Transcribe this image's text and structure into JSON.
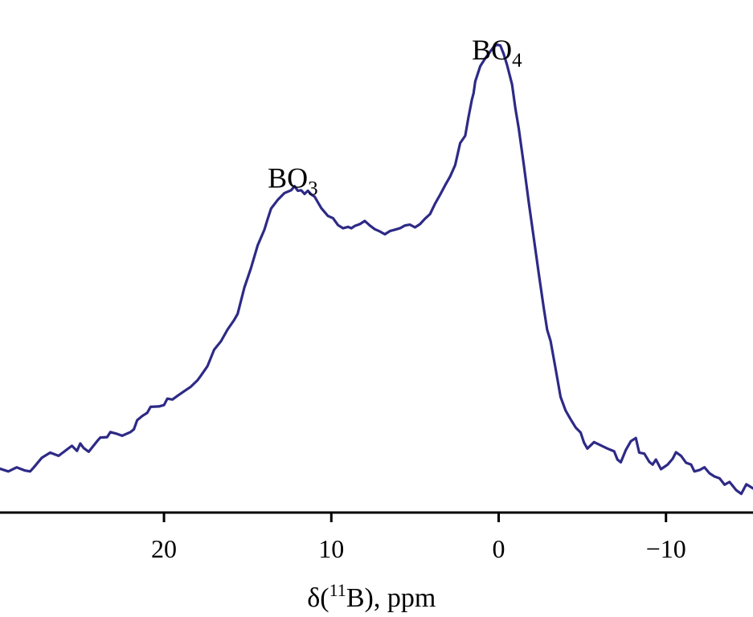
{
  "chart_data": {
    "type": "line",
    "title": "",
    "xlabel": {
      "prefix": "δ(",
      "superscript": "11",
      "suffix": "B), ppm"
    },
    "ylabel": "",
    "xlim": [
      29.8,
      -15.2
    ],
    "ylim": [
      0,
      1.0
    ],
    "x_reversed": true,
    "y_axis_visible": false,
    "grid": false,
    "legend": "none",
    "line_color": "#2e2a86",
    "axis_color": "#000000",
    "xticks": [
      {
        "value": 20,
        "label": "20"
      },
      {
        "value": 10,
        "label": "10"
      },
      {
        "value": 0,
        "label": "0"
      },
      {
        "value": -10,
        "label": "−10"
      }
    ],
    "annotations": [
      {
        "id": "bo3",
        "base": "BO",
        "subscript": "3",
        "x": 12.3,
        "y": 0.68
      },
      {
        "id": "bo4",
        "base": "BO",
        "subscript": "4",
        "x": 0.1,
        "y": 0.96
      }
    ],
    "series": [
      {
        "x": [
          29.8,
          29.3,
          28.8,
          28.3,
          28.0,
          27.8,
          27.3,
          26.8,
          26.3,
          25.8,
          25.5,
          25.2,
          25.0,
          24.8,
          24.5,
          24.0,
          23.8,
          23.4,
          23.2,
          22.8,
          22.5,
          22.0,
          21.8,
          21.6,
          21.3,
          21.0,
          20.8,
          20.3,
          20.0,
          19.8,
          19.5,
          19.2,
          18.8,
          18.4,
          18.0,
          17.8,
          17.4,
          17.0,
          16.6,
          16.2,
          15.8,
          15.6,
          15.2,
          14.8,
          14.4,
          14.0,
          13.8,
          13.6,
          13.2,
          12.8,
          12.4,
          12.2,
          12.0,
          11.8,
          11.6,
          11.4,
          11.2,
          11.0,
          10.6,
          10.2,
          9.9,
          9.6,
          9.3,
          9.0,
          8.8,
          8.6,
          8.3,
          8.0,
          7.7,
          7.4,
          7.1,
          6.8,
          6.5,
          6.2,
          5.9,
          5.6,
          5.3,
          5.0,
          4.7,
          4.4,
          4.1,
          3.8,
          3.5,
          3.2,
          2.9,
          2.6,
          2.3,
          2.0,
          1.8,
          1.6,
          1.5,
          1.4,
          1.1,
          0.8,
          0.5,
          0.3,
          0.1,
          -0.1,
          -0.3,
          -0.5,
          -0.8,
          -1.0,
          -1.2,
          -1.5,
          -1.8,
          -2.1,
          -2.4,
          -2.7,
          -2.9,
          -3.1,
          -3.4,
          -3.7,
          -4.0,
          -4.3,
          -4.6,
          -4.9,
          -5.1,
          -5.3,
          -5.7,
          -6.1,
          -6.5,
          -6.9,
          -7.1,
          -7.3,
          -7.6,
          -7.9,
          -8.2,
          -8.4,
          -8.7,
          -9.0,
          -9.2,
          -9.4,
          -9.7,
          -10.1,
          -10.4,
          -10.6,
          -10.9,
          -11.2,
          -11.5,
          -11.7,
          -12.0,
          -12.3,
          -12.6,
          -12.9,
          -13.2,
          -13.5,
          -13.8,
          -14.2,
          -14.5,
          -14.8,
          -15.2
        ],
        "y": [
          0.073,
          0.067,
          0.076,
          0.069,
          0.067,
          0.075,
          0.097,
          0.108,
          0.101,
          0.115,
          0.123,
          0.112,
          0.128,
          0.118,
          0.11,
          0.133,
          0.141,
          0.142,
          0.153,
          0.149,
          0.145,
          0.153,
          0.159,
          0.179,
          0.188,
          0.195,
          0.208,
          0.209,
          0.212,
          0.226,
          0.224,
          0.232,
          0.242,
          0.252,
          0.266,
          0.276,
          0.297,
          0.333,
          0.351,
          0.377,
          0.398,
          0.411,
          0.468,
          0.511,
          0.561,
          0.595,
          0.619,
          0.641,
          0.66,
          0.675,
          0.681,
          0.69,
          0.68,
          0.681,
          0.673,
          0.68,
          0.672,
          0.667,
          0.642,
          0.625,
          0.62,
          0.605,
          0.598,
          0.601,
          0.598,
          0.603,
          0.607,
          0.614,
          0.604,
          0.596,
          0.591,
          0.585,
          0.592,
          0.595,
          0.598,
          0.604,
          0.606,
          0.6,
          0.607,
          0.619,
          0.629,
          0.652,
          0.671,
          0.692,
          0.711,
          0.736,
          0.784,
          0.8,
          0.841,
          0.879,
          0.893,
          0.919,
          0.952,
          0.969,
          0.984,
          0.994,
          0.999,
          0.997,
          0.979,
          0.955,
          0.912,
          0.86,
          0.816,
          0.738,
          0.654,
          0.577,
          0.498,
          0.423,
          0.376,
          0.352,
          0.292,
          0.23,
          0.2,
          0.181,
          0.163,
          0.152,
          0.13,
          0.117,
          0.131,
          0.124,
          0.117,
          0.111,
          0.093,
          0.087,
          0.114,
          0.133,
          0.14,
          0.108,
          0.106,
          0.088,
          0.082,
          0.093,
          0.072,
          0.082,
          0.095,
          0.109,
          0.101,
          0.086,
          0.082,
          0.067,
          0.07,
          0.076,
          0.063,
          0.056,
          0.052,
          0.038,
          0.044,
          0.026,
          0.018,
          0.039,
          0.03
        ]
      }
    ]
  }
}
